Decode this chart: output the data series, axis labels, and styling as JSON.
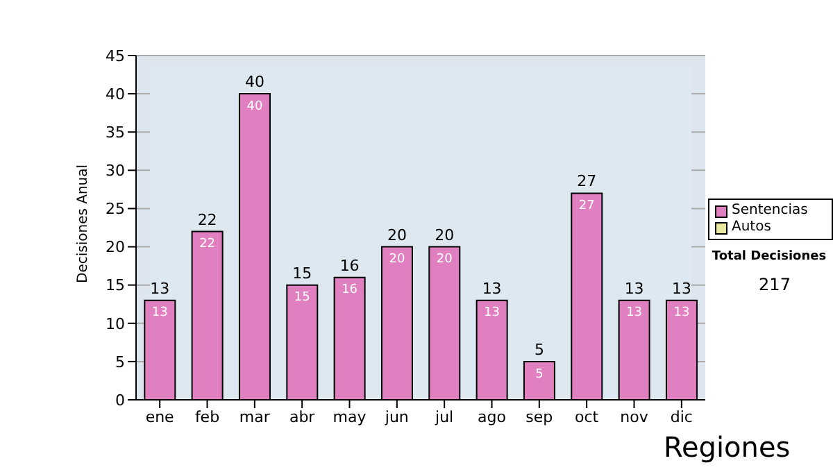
{
  "chart_data": {
    "type": "bar",
    "ylabel": "Decisiones Anual",
    "categories": [
      "ene",
      "feb",
      "mar",
      "abr",
      "may",
      "jun",
      "jul",
      "ago",
      "sep",
      "oct",
      "nov",
      "dic"
    ],
    "series": [
      {
        "name": "Sentencias",
        "color": "#e080c0",
        "values": [
          13,
          22,
          40,
          15,
          16,
          20,
          20,
          13,
          5,
          27,
          13,
          13
        ]
      },
      {
        "name": "Autos",
        "color": "#e8e8a0",
        "values": [
          null,
          null,
          null,
          null,
          null,
          null,
          null,
          null,
          null,
          null,
          null,
          null
        ]
      }
    ],
    "stacked": true,
    "totals": [
      "13",
      "22",
      "40",
      "15",
      "16",
      "20",
      "20",
      "13",
      "5",
      "27",
      "13",
      "13"
    ],
    "data_labels": true,
    "ylim": [
      0,
      45
    ],
    "yticks": [
      0,
      5,
      10,
      15,
      20,
      25,
      30,
      35,
      40,
      45
    ],
    "grid": "y",
    "legend": "right",
    "annotations": [
      "Total Decisiones",
      "217",
      "Regiones"
    ]
  }
}
